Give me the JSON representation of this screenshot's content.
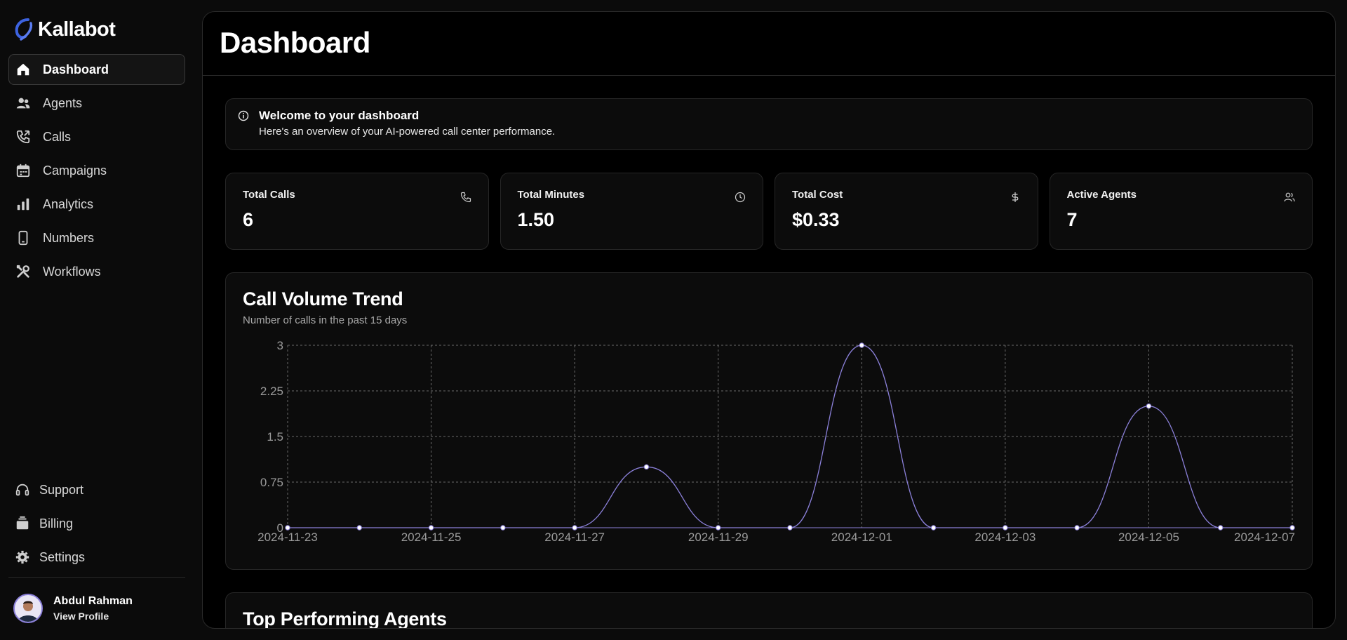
{
  "brand": {
    "name": "Kallabot"
  },
  "nav": {
    "items": [
      {
        "label": "Dashboard",
        "icon": "home-icon",
        "active": true
      },
      {
        "label": "Agents",
        "icon": "users-icon"
      },
      {
        "label": "Calls",
        "icon": "phone-icon"
      },
      {
        "label": "Campaigns",
        "icon": "calendar-icon"
      },
      {
        "label": "Analytics",
        "icon": "bar-chart-icon"
      },
      {
        "label": "Numbers",
        "icon": "mobile-icon"
      },
      {
        "label": "Workflows",
        "icon": "tools-icon"
      }
    ],
    "bottom": [
      {
        "label": "Support",
        "icon": "headset-icon"
      },
      {
        "label": "Billing",
        "icon": "billing-icon"
      },
      {
        "label": "Settings",
        "icon": "gear-icon"
      }
    ]
  },
  "profile": {
    "name": "Abdul Rahman",
    "link": "View Profile"
  },
  "header": {
    "title": "Dashboard"
  },
  "welcome": {
    "title": "Welcome to your dashboard",
    "subtitle": "Here's an overview of your AI-powered call center performance."
  },
  "stats": [
    {
      "label": "Total Calls",
      "value": "6",
      "icon": "phone-icon"
    },
    {
      "label": "Total Minutes",
      "value": "1.50",
      "icon": "clock-icon"
    },
    {
      "label": "Total Cost",
      "value": "$0.33",
      "icon": "dollar-icon"
    },
    {
      "label": "Active Agents",
      "value": "7",
      "icon": "users-icon"
    }
  ],
  "chart": {
    "title": "Call Volume Trend",
    "subtitle": "Number of calls in the past 15 days"
  },
  "chart_data": {
    "type": "line",
    "x": [
      "2024-11-23",
      "2024-11-24",
      "2024-11-25",
      "2024-11-26",
      "2024-11-27",
      "2024-11-28",
      "2024-11-29",
      "2024-11-30",
      "2024-12-01",
      "2024-12-02",
      "2024-12-03",
      "2024-12-04",
      "2024-12-05",
      "2024-12-06",
      "2024-12-07"
    ],
    "series": [
      {
        "values": [
          0,
          0,
          0,
          0,
          0,
          1,
          0,
          0,
          3,
          0,
          0,
          0,
          2,
          0,
          0
        ]
      }
    ],
    "xticks": [
      "2024-11-23",
      "2024-11-25",
      "2024-11-27",
      "2024-11-29",
      "2024-12-01",
      "2024-12-03",
      "2024-12-05",
      "2024-12-07"
    ],
    "yticks": [
      "0",
      "0.75",
      "1.5",
      "2.25",
      "3"
    ],
    "ylim": [
      0,
      3
    ],
    "grid": true,
    "line_color": "#8b80d9"
  },
  "agents_section": {
    "title": "Top Performing Agents"
  }
}
